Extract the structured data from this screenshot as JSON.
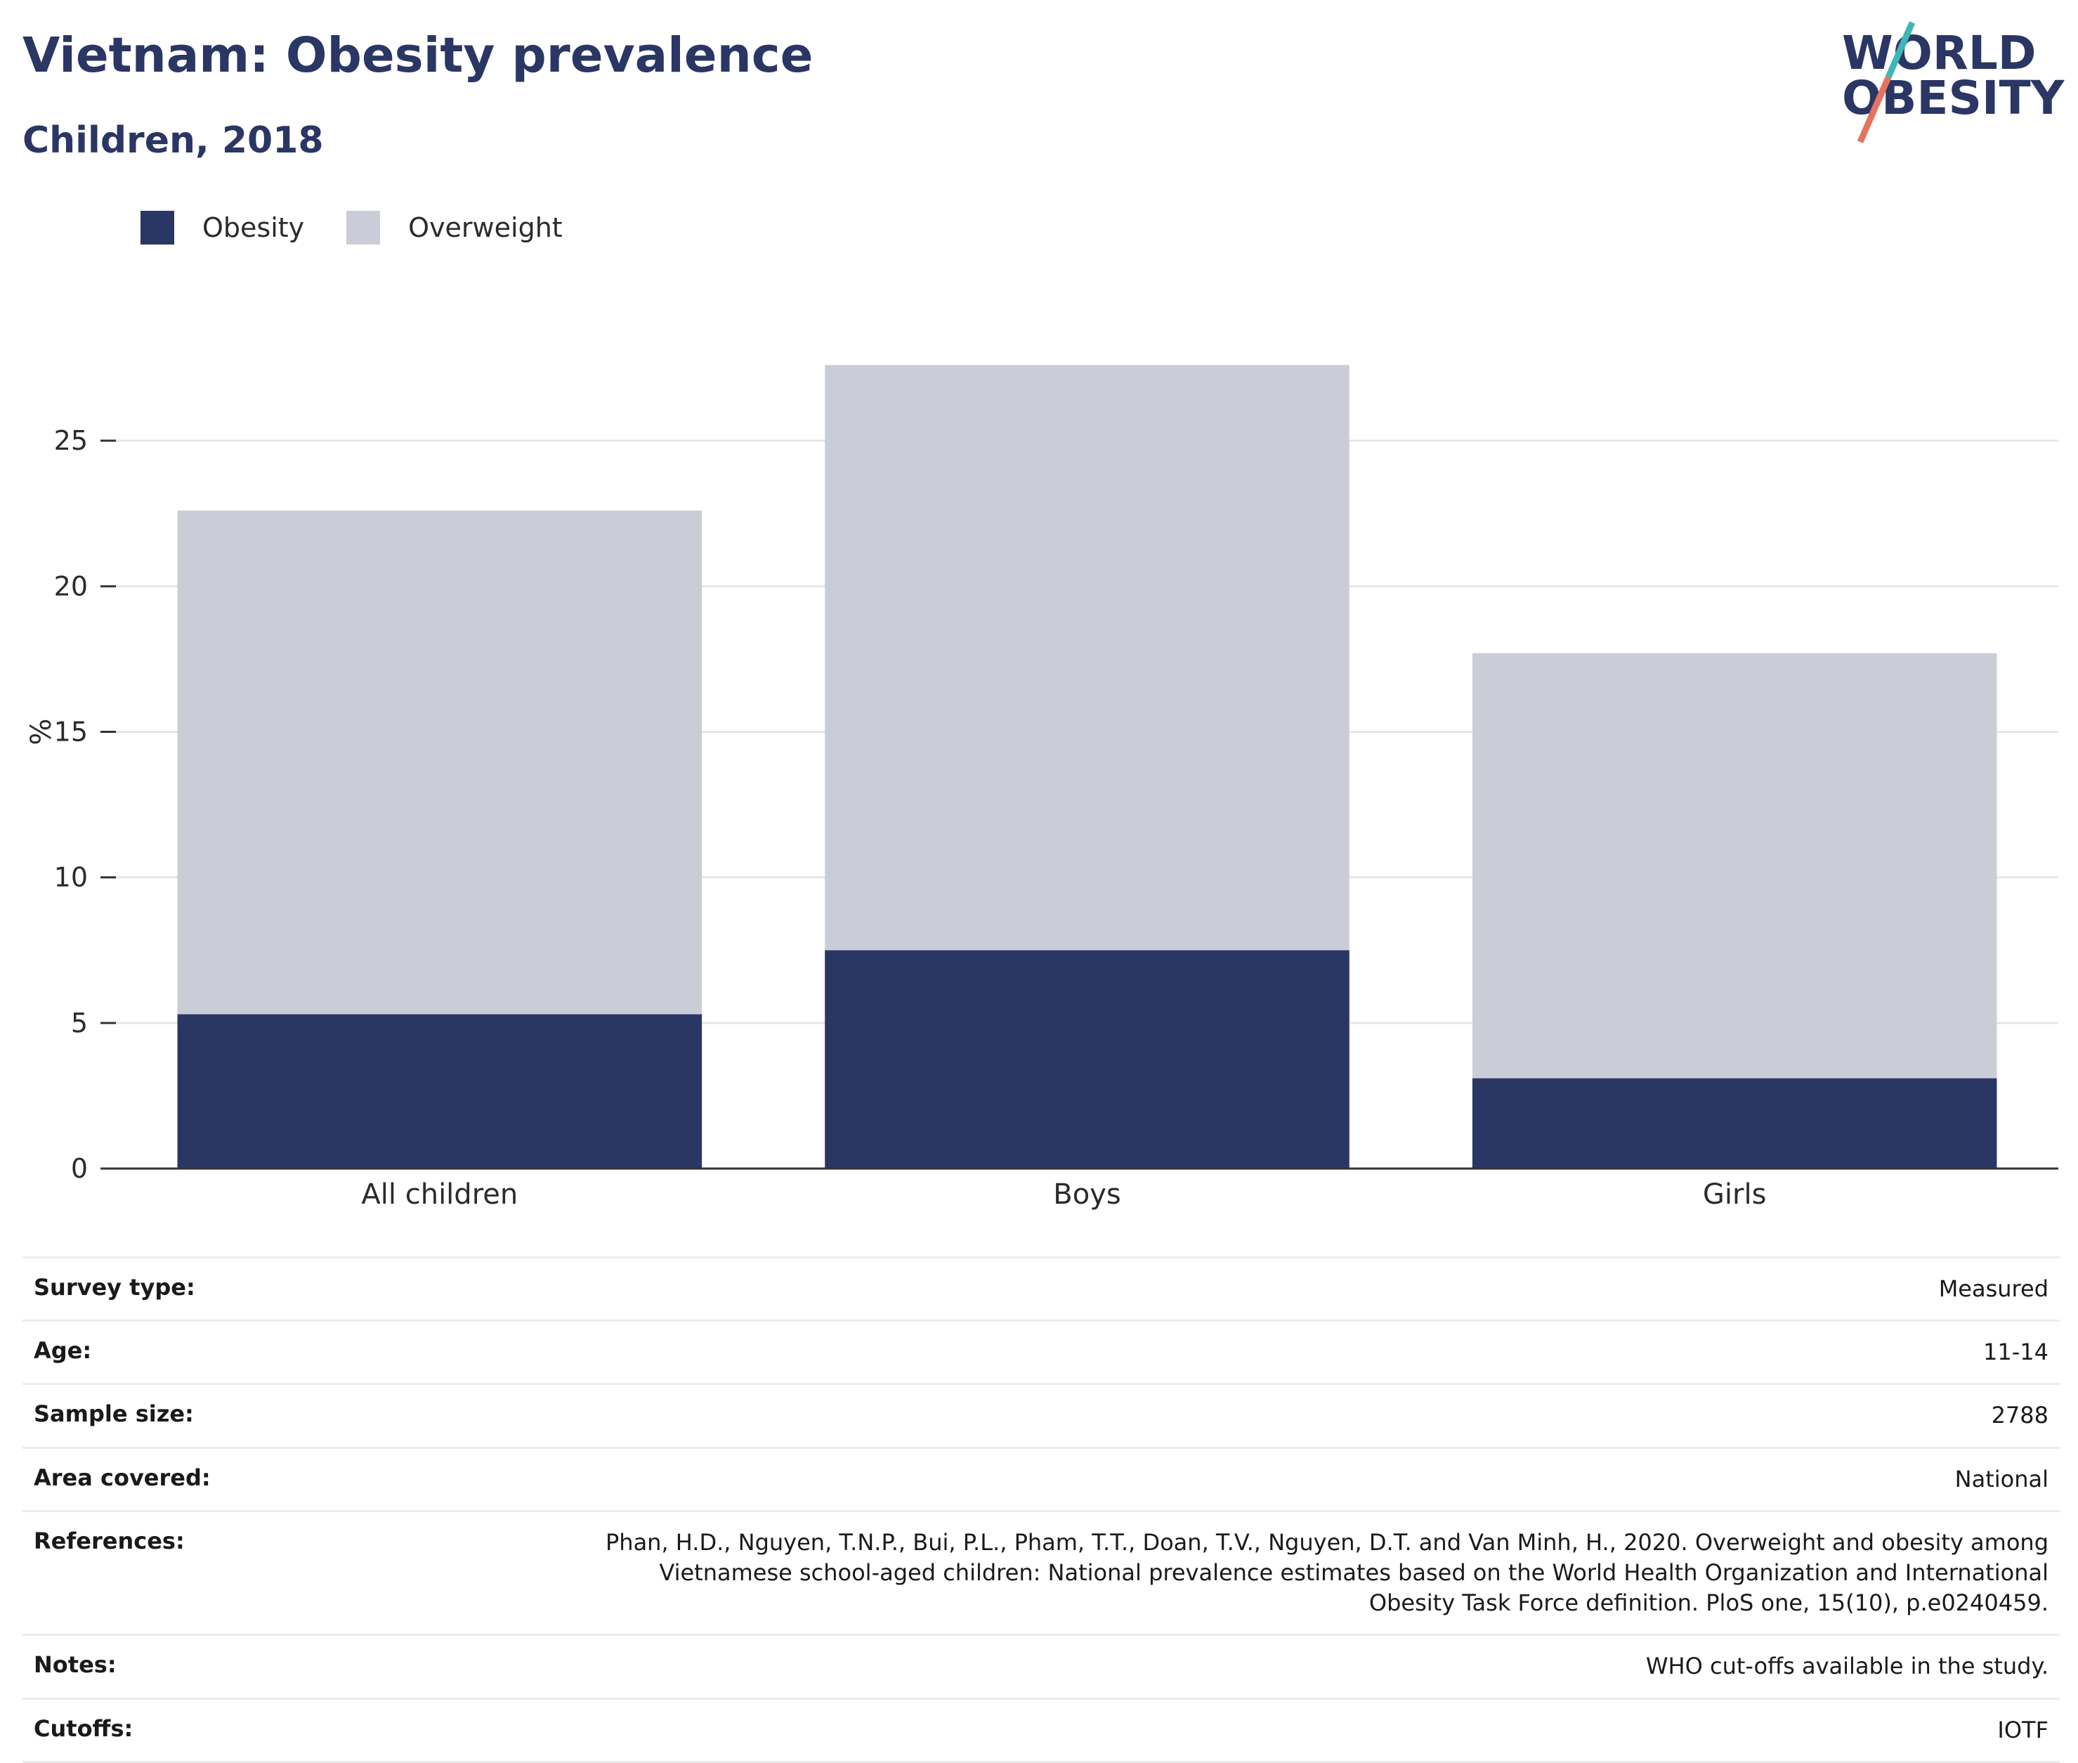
{
  "header": {
    "title": "Vietnam: Obesity prevalence",
    "subtitle": "Children, 2018"
  },
  "logo": {
    "line1": "WORLD",
    "line2": "OBESITY",
    "accent_teal": "#3fb6b8",
    "accent_coral": "#e5735f"
  },
  "colors": {
    "obesity": "#2a3663",
    "overweight": "#cacdd8",
    "axis": "#333333",
    "grid": "#e6e6e6"
  },
  "chart_data": {
    "type": "bar",
    "stacked": true,
    "categories": [
      "All children",
      "Boys",
      "Girls"
    ],
    "series": [
      {
        "name": "Obesity",
        "values": [
          5.3,
          7.5,
          3.1
        ]
      },
      {
        "name": "Overweight",
        "values": [
          17.3,
          20.1,
          14.6
        ]
      }
    ],
    "ylabel": "%",
    "xlabel": "",
    "yticks": [
      0,
      5,
      10,
      15,
      20,
      25
    ],
    "ylim": [
      0,
      30
    ],
    "grid": true,
    "legend": "top-left"
  },
  "details": [
    {
      "label": "Survey type:",
      "value": "Measured"
    },
    {
      "label": "Age:",
      "value": "11-14"
    },
    {
      "label": "Sample size:",
      "value": "2788"
    },
    {
      "label": "Area covered:",
      "value": "National"
    },
    {
      "label": "References:",
      "value": "Phan, H.D., Nguyen, T.N.P., Bui, P.L., Pham, T.T., Doan, T.V., Nguyen, D.T. and Van Minh, H., 2020. Overweight and obesity among Vietnamese school-aged children: National prevalence estimates based on the World Health Organization and International Obesity Task Force definition. PloS one, 15(10), p.e0240459."
    },
    {
      "label": "Notes:",
      "value": "WHO cut-offs available in the study."
    },
    {
      "label": "Cutoffs:",
      "value": "IOTF"
    }
  ]
}
